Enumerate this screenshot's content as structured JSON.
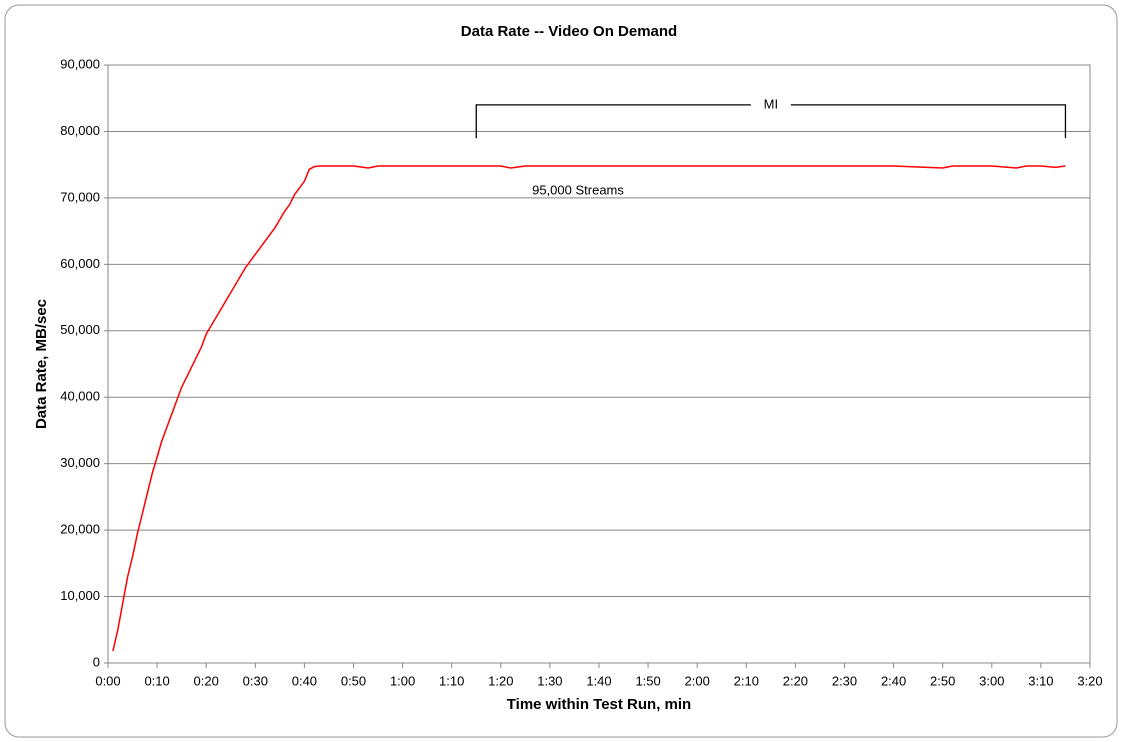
{
  "chart_data": {
    "type": "line",
    "title": "Data Rate -- Video On Demand",
    "x_label": "Time within Test Run, min",
    "y_label": "Data Rate, MB/sec",
    "x": [
      1,
      2,
      3,
      4,
      5,
      6,
      7,
      8,
      9,
      10,
      11,
      12,
      13,
      14,
      15,
      16,
      17,
      18,
      19,
      20,
      22,
      24,
      26,
      28,
      30,
      32,
      34,
      36,
      37,
      38,
      39,
      40,
      41,
      42,
      43,
      45,
      50,
      53,
      55,
      60,
      70,
      80,
      82,
      85,
      90,
      100,
      120,
      140,
      160,
      170,
      172,
      175,
      180,
      185,
      187,
      190,
      193,
      195
    ],
    "series": [
      {
        "name": "95,000 Streams",
        "color": "#ff0000",
        "values": [
          1800,
          5000,
          9000,
          13000,
          16000,
          19500,
          22500,
          25500,
          28500,
          31000,
          33500,
          35500,
          37500,
          39500,
          41500,
          43000,
          44500,
          46000,
          47500,
          49500,
          52000,
          54500,
          57000,
          59500,
          61500,
          63500,
          65500,
          68000,
          69000,
          70500,
          71500,
          72500,
          74300,
          74700,
          74800,
          74800,
          74800,
          74500,
          74800,
          74800,
          74800,
          74800,
          74500,
          74800,
          74800,
          74800,
          74800,
          74800,
          74800,
          74500,
          74800,
          74800,
          74800,
          74500,
          74800,
          74800,
          74600,
          74800
        ]
      }
    ],
    "interval": {
      "label": "MI",
      "x": [
        75,
        195
      ]
    },
    "xlim": [
      0,
      200
    ],
    "xticks": [
      {
        "value": 0,
        "label": "0:00"
      },
      {
        "value": 10,
        "label": "0:10"
      },
      {
        "value": 20,
        "label": "0:20"
      },
      {
        "value": 30,
        "label": "0:30"
      },
      {
        "value": 40,
        "label": "0:40"
      },
      {
        "value": 50,
        "label": "0:50"
      },
      {
        "value": 60,
        "label": "1:00"
      },
      {
        "value": 70,
        "label": "1:10"
      },
      {
        "value": 80,
        "label": "1:20"
      },
      {
        "value": 90,
        "label": "1:30"
      },
      {
        "value": 100,
        "label": "1:40"
      },
      {
        "value": 110,
        "label": "1:50"
      },
      {
        "value": 120,
        "label": "2:00"
      },
      {
        "value": 130,
        "label": "2:10"
      },
      {
        "value": 140,
        "label": "2:20"
      },
      {
        "value": 150,
        "label": "2:30"
      },
      {
        "value": 160,
        "label": "2:40"
      },
      {
        "value": 170,
        "label": "2:50"
      },
      {
        "value": 180,
        "label": "3:00"
      },
      {
        "value": 190,
        "label": "3:10"
      },
      {
        "value": 200,
        "label": "3:20"
      }
    ],
    "ylim": [
      0,
      90000
    ],
    "yticks": [
      0,
      {
        "value": 10000,
        "label": "10,000"
      },
      {
        "value": 20000,
        "label": "20,000"
      },
      {
        "value": 30000,
        "label": "30,000"
      },
      {
        "value": 40000,
        "label": "40,000"
      },
      {
        "value": 50000,
        "label": "50,000"
      },
      {
        "value": 60000,
        "label": "60,000"
      },
      {
        "value": 70000,
        "label": "70,000"
      },
      {
        "value": 80000,
        "label": "80,000"
      },
      {
        "value": 90000,
        "label": "90,000"
      }
    ],
    "grid": true
  }
}
